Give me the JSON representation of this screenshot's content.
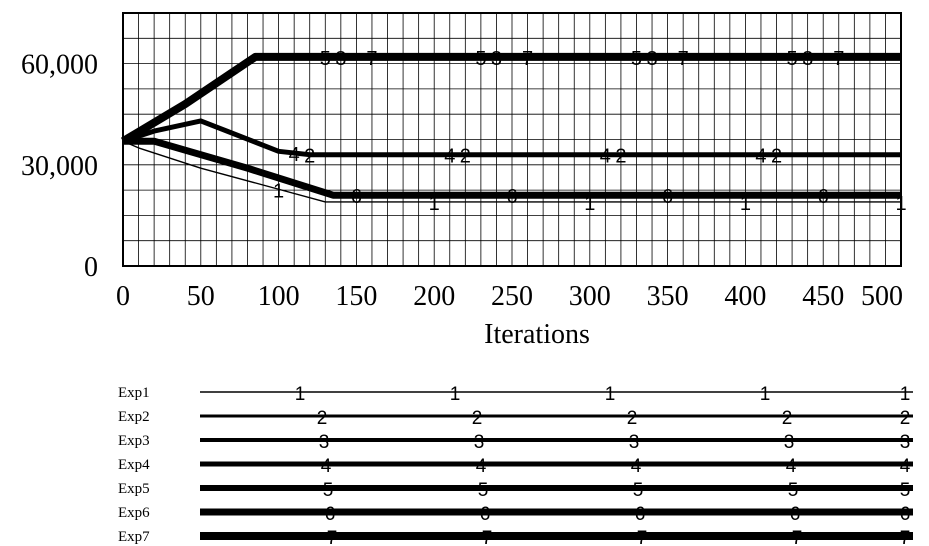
{
  "chart_data": {
    "type": "line",
    "title": "",
    "xlabel": "Iterations",
    "ylabel": "",
    "xlim": [
      0,
      500
    ],
    "ylim": [
      0,
      75000
    ],
    "x_ticks": [
      "0",
      "50",
      "100",
      "150",
      "200",
      "250",
      "300",
      "350",
      "400",
      "450",
      "500"
    ],
    "y_ticks": [
      {
        "value": 0,
        "label": "0"
      },
      {
        "value": 30000,
        "label": "30,000"
      },
      {
        "value": 60000,
        "label": "60,000"
      }
    ],
    "grid": true,
    "legend_position": "bottom",
    "series": [
      {
        "name": "Exp1",
        "marker": "1",
        "points": [
          [
            0,
            37000
          ],
          [
            10,
            35000
          ],
          [
            50,
            29000
          ],
          [
            90,
            24000
          ],
          [
            130,
            19000
          ],
          [
            500,
            19000
          ]
        ]
      },
      {
        "name": "Exp2",
        "marker": "2",
        "points": [
          [
            0,
            37000
          ],
          [
            20,
            40000
          ],
          [
            50,
            43000
          ],
          [
            100,
            34000
          ],
          [
            120,
            33000
          ],
          [
            500,
            33000
          ]
        ]
      },
      {
        "name": "Exp3",
        "marker": "3",
        "points": [
          [
            0,
            37000
          ],
          [
            40,
            48000
          ],
          [
            85,
            62000
          ],
          [
            500,
            62000
          ]
        ]
      },
      {
        "name": "Exp4",
        "marker": "4",
        "points": [
          [
            0,
            37000
          ],
          [
            20,
            40000
          ],
          [
            50,
            43000
          ],
          [
            100,
            34000
          ],
          [
            120,
            33000
          ],
          [
            500,
            33000
          ]
        ]
      },
      {
        "name": "Exp5",
        "marker": "5",
        "points": [
          [
            0,
            37000
          ],
          [
            40,
            48000
          ],
          [
            85,
            62000
          ],
          [
            500,
            62000
          ]
        ]
      },
      {
        "name": "Exp6",
        "marker": "6",
        "points": [
          [
            0,
            37000
          ],
          [
            20,
            37000
          ],
          [
            80,
            29000
          ],
          [
            135,
            21000
          ],
          [
            500,
            21000
          ]
        ]
      },
      {
        "name": "Exp7",
        "marker": "7",
        "points": [
          [
            0,
            37000
          ],
          [
            40,
            48000
          ],
          [
            85,
            62000
          ],
          [
            500,
            62000
          ]
        ]
      }
    ]
  }
}
